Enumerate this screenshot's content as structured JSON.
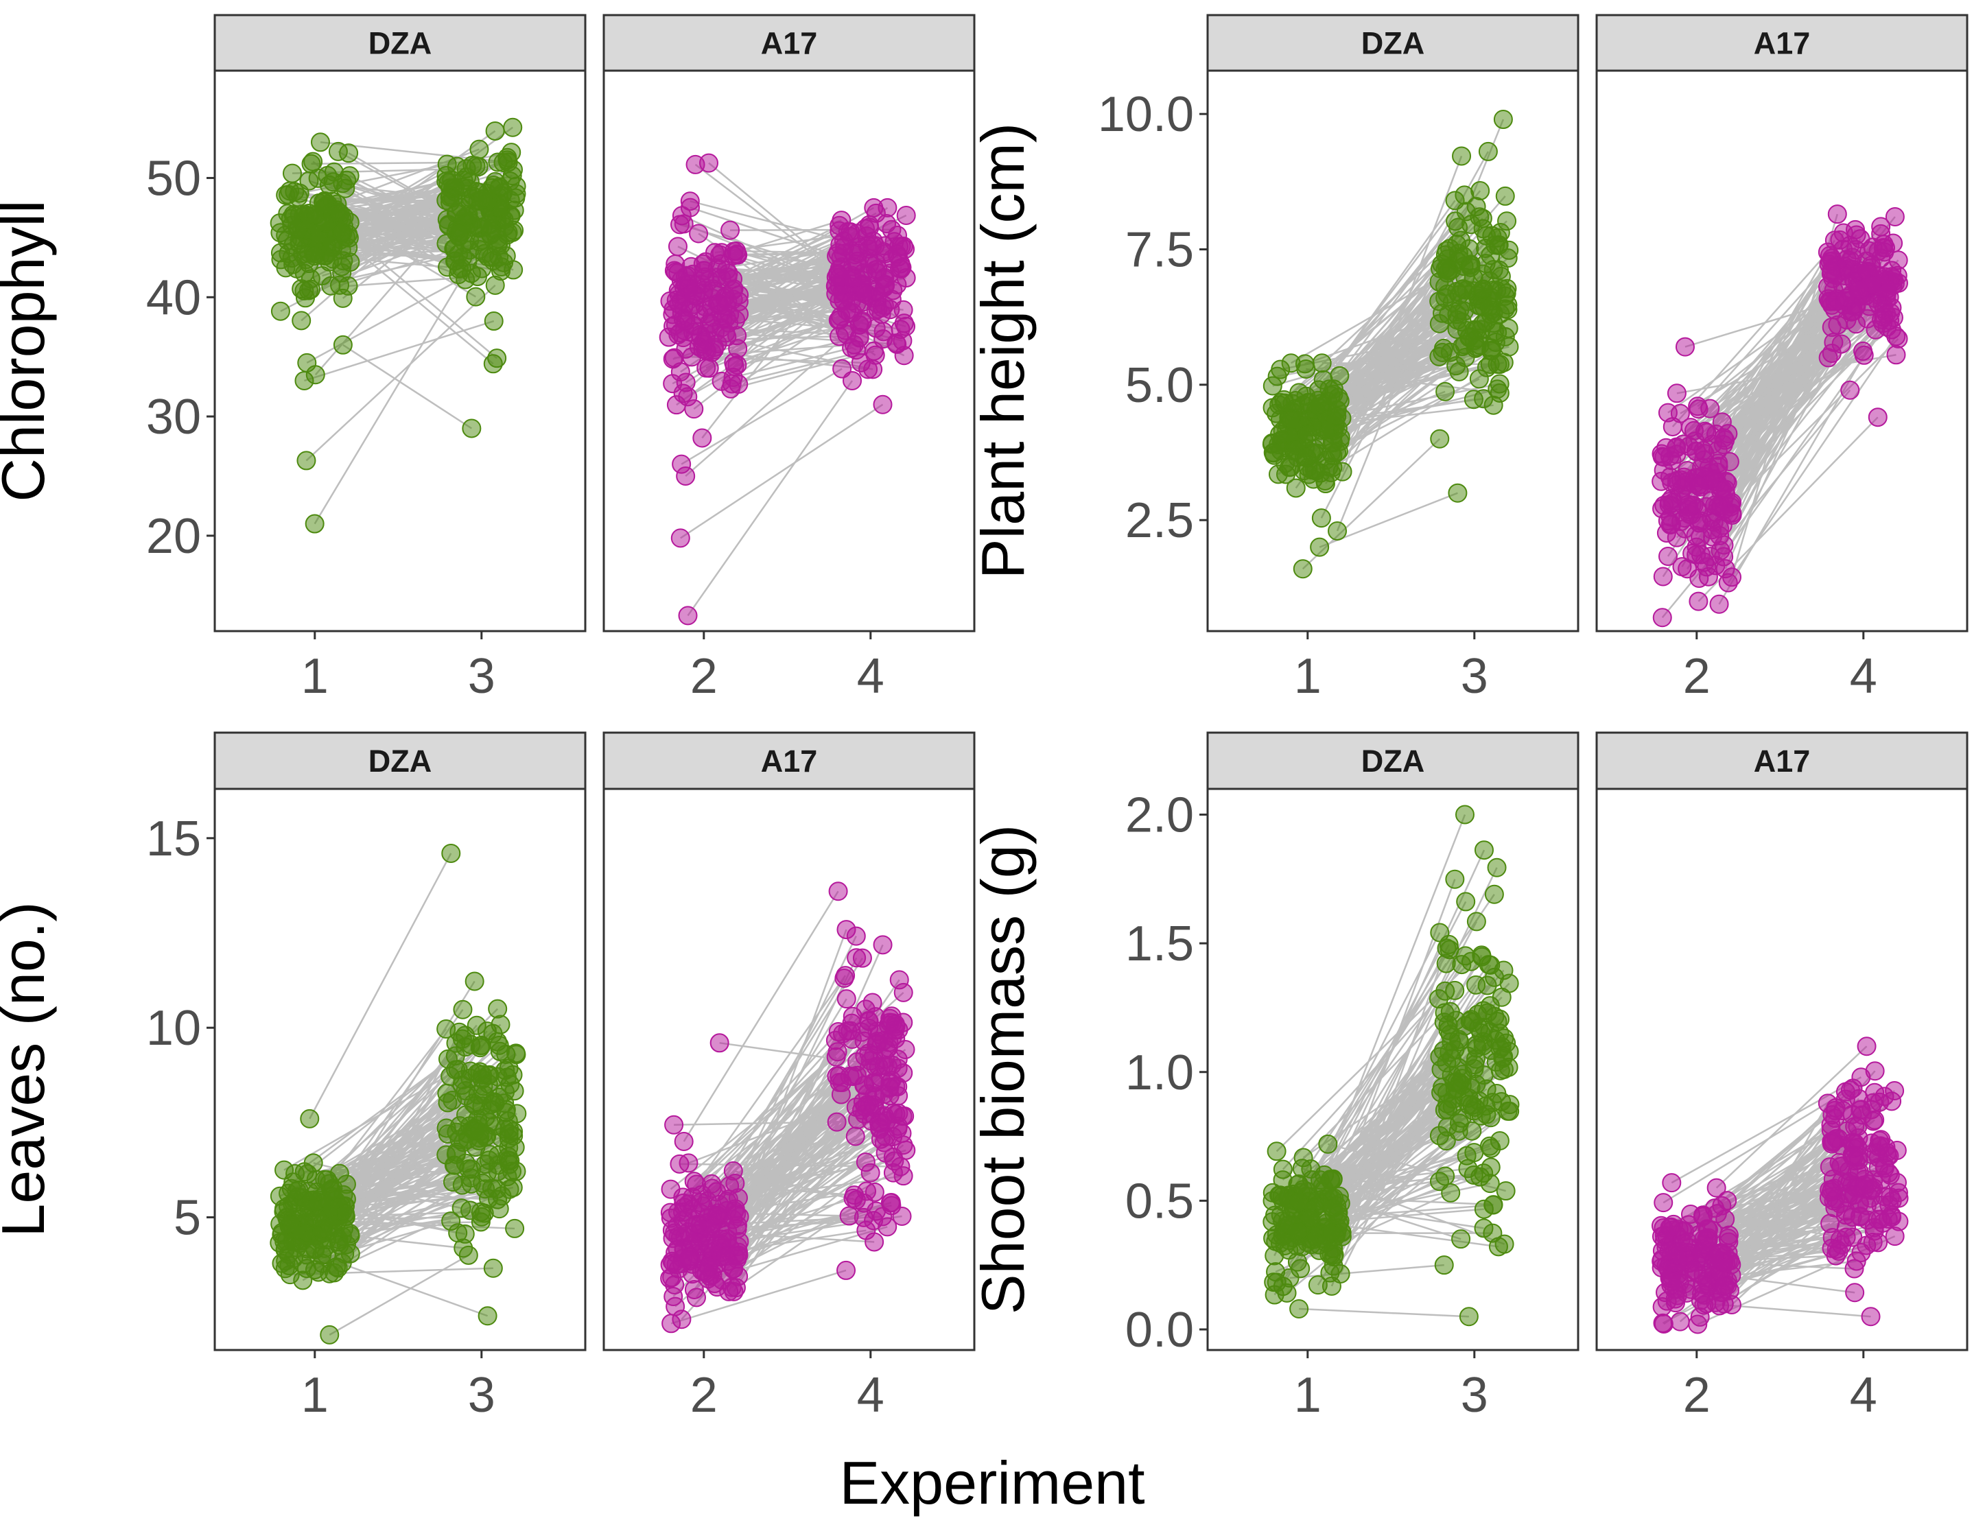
{
  "chart_data": {
    "type": "scatter",
    "style": "faceted paired jitter plot with connecting lines",
    "xlabel": "Experiment",
    "colors": {
      "DZA": "#4d8a0f",
      "A17": "#b5199c",
      "line": "#bebebe",
      "strip": "#d9d9d9"
    },
    "grid": false,
    "legend": "none",
    "panels": [
      {
        "ylabel": "Chlorophyll",
        "ylim": [
          12,
          59
        ],
        "yticks": [
          20,
          30,
          40,
          50
        ],
        "yticklabels": [
          "20",
          "30",
          "40",
          "50"
        ],
        "facets": [
          {
            "strip": "DZA",
            "group": "DZA",
            "xticks": [
              "1",
              "3"
            ],
            "left": {
              "center": 46,
              "spread": 2.6,
              "min": 21,
              "max": 53
            },
            "right": {
              "center": 47,
              "spread": 3.0,
              "min": 29,
              "max": 56
            },
            "outliers": [
              [
                21,
                44
              ],
              [
                26.3,
                41
              ],
              [
                33,
                38
              ],
              [
                36,
                29
              ],
              [
                33.5,
                47.5
              ],
              [
                34.5,
                42
              ]
            ]
          },
          {
            "strip": "A17",
            "group": "A17",
            "xticks": [
              "2",
              "4"
            ],
            "left": {
              "center": 39.5,
              "spread": 4.2,
              "min": 13.3,
              "max": 54
            },
            "right": {
              "center": 41,
              "spread": 2.8,
              "min": 30,
              "max": 47.5
            },
            "outliers": [
              [
                13.3,
                33
              ],
              [
                19.8,
                31
              ],
              [
                25,
                38
              ],
              [
                26,
                34
              ]
            ]
          }
        ]
      },
      {
        "ylabel": "Plant height (cm)",
        "ylim": [
          0.45,
          10.8
        ],
        "yticks": [
          2.5,
          5.0,
          7.5,
          10.0
        ],
        "yticklabels": [
          "2.5",
          "5.0",
          "7.5",
          "10.0"
        ],
        "facets": [
          {
            "strip": "DZA",
            "group": "DZA",
            "xticks": [
              "1",
              "3"
            ],
            "left": {
              "center": 4.1,
              "spread": 0.55,
              "min": 1.6,
              "max": 5.4
            },
            "right": {
              "center": 6.6,
              "spread": 0.9,
              "min": 3.0,
              "max": 9.9
            },
            "outliers": [
              [
                2.0,
                3.0
              ],
              [
                2.3,
                9.9
              ],
              [
                1.6,
                4.0
              ]
            ]
          },
          {
            "strip": "A17",
            "group": "A17",
            "xticks": [
              "2",
              "4"
            ],
            "left": {
              "center": 3.0,
              "spread": 0.75,
              "min": 0.7,
              "max": 5.7
            },
            "right": {
              "center": 6.9,
              "spread": 0.55,
              "min": 4.4,
              "max": 8.4
            },
            "outliers": [
              [
                0.7,
                4.9
              ],
              [
                5.7,
                6.6
              ],
              [
                1.0,
                4.4
              ]
            ]
          }
        ]
      },
      {
        "ylabel": "Leaves (no.)",
        "ylim": [
          1.5,
          16.3
        ],
        "yticks": [
          5,
          10,
          15
        ],
        "yticklabels": [
          "5",
          "10",
          "15"
        ],
        "facets": [
          {
            "strip": "DZA",
            "group": "DZA",
            "xticks": [
              "1",
              "3"
            ],
            "left": {
              "center": 5.0,
              "spread": 0.75,
              "min": 1.9,
              "max": 7.6
            },
            "right": {
              "center": 7.5,
              "spread": 1.8,
              "min": 2.4,
              "max": 14.6
            },
            "outliers": [
              [
                1.9,
                4.0
              ],
              [
                7.6,
                14.6
              ],
              [
                4.2,
                2.4
              ]
            ]
          },
          {
            "strip": "A17",
            "group": "A17",
            "xticks": [
              "2",
              "4"
            ],
            "left": {
              "center": 4.3,
              "spread": 0.8,
              "min": 2.2,
              "max": 9.6
            },
            "right": {
              "center": 8.5,
              "spread": 1.7,
              "min": 3.6,
              "max": 13.6
            },
            "outliers": [
              [
                9.6,
                9.1
              ],
              [
                7.0,
                13.6
              ],
              [
                2.2,
                3.6
              ]
            ]
          }
        ]
      },
      {
        "ylabel": "Shoot biomass (g)",
        "ylim": [
          -0.08,
          2.1
        ],
        "yticks": [
          0.0,
          0.5,
          1.0,
          1.5,
          2.0
        ],
        "yticklabels": [
          "0.0",
          "0.5",
          "1.0",
          "1.5",
          "2.0"
        ],
        "facets": [
          {
            "strip": "DZA",
            "group": "DZA",
            "xticks": [
              "1",
              "3"
            ],
            "left": {
              "center": 0.42,
              "spread": 0.12,
              "min": 0.08,
              "max": 0.72
            },
            "right": {
              "center": 1.0,
              "spread": 0.3,
              "min": 0.05,
              "max": 2.0
            },
            "outliers": [
              [
                0.08,
                0.05
              ],
              [
                0.6,
                2.0
              ],
              [
                0.2,
                0.25
              ]
            ]
          },
          {
            "strip": "A17",
            "group": "A17",
            "xticks": [
              "2",
              "4"
            ],
            "left": {
              "center": 0.25,
              "spread": 0.1,
              "min": 0.02,
              "max": 0.58
            },
            "right": {
              "center": 0.62,
              "spread": 0.18,
              "min": 0.05,
              "max": 1.1
            },
            "outliers": [
              [
                0.57,
                0.98
              ],
              [
                0.55,
                1.1
              ],
              [
                0.1,
                0.05
              ]
            ]
          }
        ]
      }
    ]
  }
}
